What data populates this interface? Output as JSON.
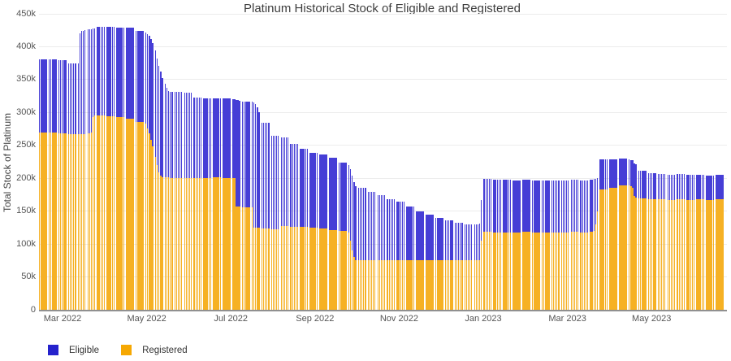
{
  "title": "Platinum Historical Stock of Eligible and Registered",
  "y_axis": {
    "label": "Total Stock of Platinum",
    "ticks": [
      "0",
      "50k",
      "100k",
      "150k",
      "200k",
      "250k",
      "300k",
      "350k",
      "400k",
      "450k"
    ]
  },
  "x_axis": {
    "ticks": [
      "Mar 2022",
      "May 2022",
      "Jul 2022",
      "Sep 2022",
      "Nov 2022",
      "Jan 2023",
      "Mar 2023",
      "May 2023"
    ]
  },
  "legend": {
    "eligible_label": "Eligible",
    "registered_label": "Registered"
  },
  "colors": {
    "eligible": "#2a22cf",
    "eligible_light": "#7b74e2",
    "registered": "#f4a406",
    "registered_light": "#fbca5e",
    "gridline": "#ececec",
    "axis_line": "#909090",
    "title_text": "#3d3d3d",
    "tick_text": "#555555"
  },
  "chart_data": {
    "type": "bar",
    "stacked": true,
    "title": "Platinum Historical Stock of Eligible and Registered",
    "xlabel": "",
    "ylabel": "Total Stock of Platinum",
    "x_unit": "week (5 daily bars per week, mid-Feb 2022 to late Jun 2023)",
    "x_tick_labels": [
      "Mar 2022",
      "May 2022",
      "Jul 2022",
      "Sep 2022",
      "Nov 2022",
      "Jan 2023",
      "Mar 2023",
      "May 2023"
    ],
    "values_unit": "thousands of oz",
    "ylim": [
      0,
      450
    ],
    "grid": true,
    "legend_position": "bottom-left",
    "series": [
      {
        "name": "Registered",
        "values": [
          270,
          269,
          268,
          267,
          267,
          270,
          295,
          294,
          293,
          291,
          285,
          262,
          209,
          201,
          200,
          200,
          200,
          200,
          201,
          200,
          174,
          156,
          131,
          124,
          123,
          127,
          126,
          126,
          125,
          124,
          121,
          120,
          93,
          75,
          76,
          76,
          76,
          76,
          76,
          76,
          75,
          75,
          75,
          75,
          75,
          81,
          119,
          118,
          118,
          118,
          119,
          118,
          118,
          118,
          118,
          119,
          118,
          125,
          183,
          186,
          189,
          181,
          169,
          168,
          168,
          167,
          168,
          167,
          168,
          167,
          168
        ]
      },
      {
        "name": "Eligible",
        "values": [
          111,
          112,
          112,
          107,
          157,
          157,
          135,
          136,
          136,
          138,
          139,
          154,
          164,
          135,
          131,
          130,
          123,
          121,
          120,
          121,
          145,
          160,
          180,
          160,
          141,
          135,
          126,
          119,
          114,
          112,
          110,
          104,
          110,
          111,
          103,
          98,
          92,
          88,
          81,
          74,
          70,
          65,
          61,
          57,
          55,
          56,
          80,
          80,
          80,
          79,
          79,
          79,
          79,
          78,
          79,
          79,
          79,
          74,
          46,
          43,
          41,
          45,
          43,
          40,
          38,
          38,
          38,
          38,
          37,
          37,
          37
        ]
      }
    ],
    "day_overrides": {
      "4": {
        "r": [
          267,
          267,
          267,
          267,
          267
        ],
        "e": [
          108,
          153,
          157,
          157,
          158
        ]
      },
      "5": {
        "r": [
          268,
          268,
          270,
          293,
          295
        ],
        "e": [
          158,
          159,
          157,
          135,
          133
        ]
      },
      "11": {
        "r": [
          283,
          276,
          268,
          258,
          248
        ],
        "e": [
          138,
          143,
          149,
          154,
          158
        ]
      },
      "12": {
        "r": [
          232,
          220,
          209,
          204,
          202
        ],
        "e": [
          162,
          162,
          162,
          158,
          150
        ]
      },
      "13": {
        "r": [
          202,
          201,
          201,
          200,
          200
        ],
        "e": [
          142,
          137,
          132,
          131,
          131
        ]
      },
      "20": {
        "r": [
          200,
          200,
          157,
          157,
          157
        ],
        "e": [
          120,
          120,
          162,
          162,
          161
        ]
      },
      "22": {
        "r": [
          156,
          125,
          125,
          125,
          125
        ],
        "e": [
          160,
          190,
          188,
          183,
          175
        ]
      },
      "32": {
        "r": [
          118,
          105,
          90,
          80,
          76
        ],
        "e": [
          102,
          109,
          114,
          114,
          112
        ]
      },
      "45": {
        "r": [
          75,
          75,
          75,
          75,
          105
        ],
        "e": [
          55,
          55,
          55,
          56,
          62
        ]
      },
      "57": {
        "r": [
          119,
          119,
          120,
          130,
          150
        ],
        "e": [
          79,
          79,
          79,
          69,
          50
        ]
      },
      "61": {
        "r": [
          189,
          188,
          186,
          173,
          171
        ],
        "e": [
          40,
          40,
          42,
          49,
          50
        ]
      }
    }
  }
}
